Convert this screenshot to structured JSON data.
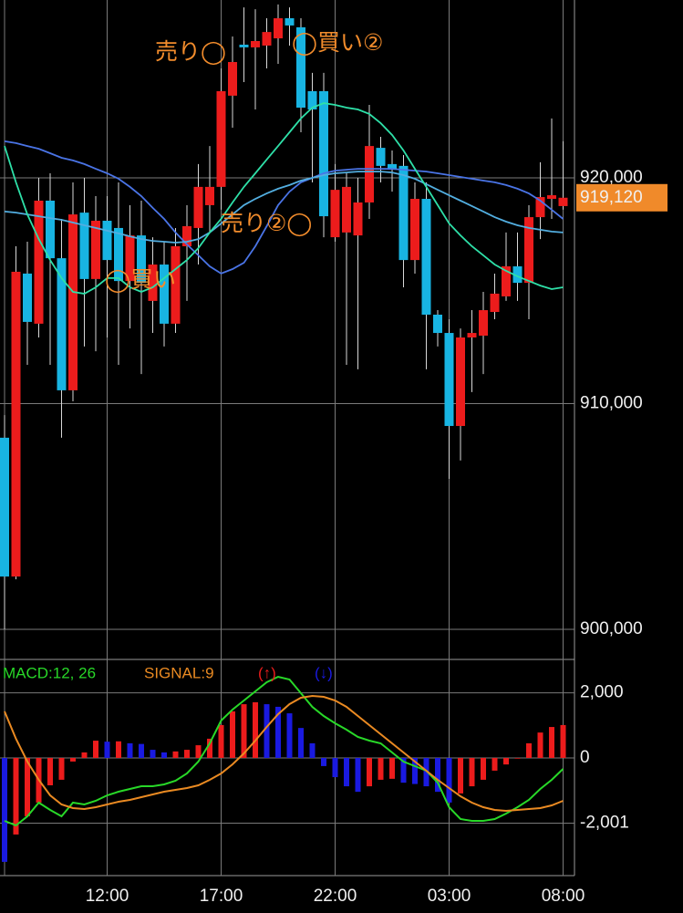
{
  "chart_data": [
    {
      "type": "candlestick",
      "categories": [
        null,
        null,
        null,
        null,
        null,
        null,
        null,
        null,
        null,
        "12:00",
        null,
        null,
        null,
        null,
        null,
        null,
        null,
        null,
        null,
        "17:00",
        null,
        null,
        null,
        null,
        null,
        null,
        null,
        null,
        null,
        "22:00",
        null,
        null,
        null,
        null,
        null,
        null,
        null,
        null,
        null,
        "03:00",
        null,
        null,
        null,
        null,
        null,
        null,
        null,
        null,
        null,
        "08:00"
      ],
      "open": [
        908490,
        902340,
        915760,
        913540,
        918990,
        916440,
        910590,
        918460,
        915520,
        918100,
        917780,
        915430,
        917450,
        914550,
        916160,
        913540,
        916970,
        917780,
        918790,
        919600,
        923640,
        925900,
        925780,
        925860,
        926180,
        927070,
        926670,
        923840,
        923840,
        917370,
        917580,
        917450,
        918910,
        921330,
        920610,
        920530,
        916360,
        919070,
        913940,
        913130,
        909010,
        912930,
        913010,
        914060,
        914750,
        916080,
        915350,
        918260,
        919070,
        918750
      ],
      "high": [
        909490,
        916970,
        917170,
        920000,
        920200,
        918180,
        919800,
        920000,
        919190,
        919190,
        919800,
        918790,
        918990,
        917370,
        917170,
        917780,
        918790,
        920610,
        921410,
        924850,
        926260,
        927550,
        927470,
        927070,
        927680,
        927550,
        927070,
        924650,
        924650,
        920610,
        920200,
        920000,
        923230,
        921820,
        921210,
        921010,
        919800,
        919800,
        914140,
        913740,
        913330,
        914140,
        914950,
        915760,
        917580,
        917580,
        918790,
        920690,
        922630,
        921620
      ],
      "low": [
        900000,
        902220,
        911720,
        912930,
        911720,
        908490,
        910100,
        912530,
        912320,
        912930,
        911720,
        913330,
        911310,
        913130,
        912530,
        913130,
        914550,
        916160,
        917580,
        918590,
        922220,
        924240,
        923030,
        924850,
        925050,
        925860,
        922020,
        919800,
        917370,
        917170,
        911720,
        911520,
        918180,
        919800,
        919390,
        915150,
        915760,
        911520,
        912530,
        906670,
        907480,
        910510,
        911310,
        913740,
        914550,
        914550,
        913740,
        917290,
        918180,
        918590
      ],
      "close": [
        902340,
        915840,
        913620,
        918990,
        916440,
        910590,
        918380,
        915520,
        918100,
        916360,
        915430,
        917450,
        915350,
        916160,
        913540,
        916970,
        917860,
        919600,
        919600,
        923840,
        925130,
        925780,
        926060,
        926460,
        927070,
        926750,
        923110,
        923030,
        918300,
        919470,
        919600,
        918910,
        921410,
        920530,
        920360,
        916360,
        919070,
        913940,
        913130,
        909010,
        912930,
        913130,
        914140,
        914870,
        916080,
        915350,
        918260,
        919150,
        919230,
        919120
      ],
      "up_color": "#ec1c1c",
      "down_color": "#18b4e2",
      "series": [
        {
          "color": "#4a74e6",
          "values": [
            921620,
            921540,
            921410,
            921290,
            921090,
            920890,
            920770,
            920610,
            920400,
            920200,
            919960,
            919600,
            919190,
            918670,
            918180,
            917580,
            917050,
            916570,
            916080,
            915760,
            915960,
            916240,
            916970,
            917860,
            918790,
            919390,
            919800,
            920000,
            920200,
            920320,
            920360,
            920400,
            920400,
            920400,
            920400,
            920360,
            920320,
            920280,
            920200,
            920120,
            920040,
            919960,
            919880,
            919800,
            919680,
            919520,
            919310,
            918990,
            918590,
            918180
          ]
        },
        {
          "color": "#52aee0",
          "values": [
            918510,
            918460,
            918380,
            918300,
            918220,
            918140,
            918020,
            917900,
            917780,
            917660,
            917540,
            917410,
            917290,
            917210,
            917170,
            917130,
            917170,
            917290,
            917580,
            917980,
            918380,
            918790,
            919070,
            919310,
            919520,
            919680,
            919880,
            920000,
            920120,
            920200,
            920240,
            920280,
            920280,
            920280,
            920240,
            920120,
            919960,
            919720,
            919470,
            919230,
            918990,
            918750,
            918510,
            918260,
            918060,
            917900,
            917780,
            917700,
            917620,
            917580
          ]
        },
        {
          "color": "#2ee0a8",
          "values": [
            921410,
            919800,
            918380,
            917290,
            916360,
            915560,
            914950,
            914870,
            915150,
            915560,
            915560,
            915150,
            914950,
            915150,
            915560,
            915960,
            916360,
            916890,
            917580,
            918180,
            918910,
            919600,
            920200,
            920810,
            921410,
            922020,
            922630,
            923110,
            923310,
            923230,
            923110,
            923030,
            922830,
            922420,
            921900,
            921210,
            920400,
            919600,
            918790,
            917980,
            917450,
            916970,
            916570,
            916160,
            915880,
            915640,
            915430,
            915230,
            915070,
            915150
          ]
        }
      ],
      "ylim": [
        898709,
        927878
      ],
      "yticks": [
        {
          "value": 900000,
          "label": "900,000"
        },
        {
          "value": 910000,
          "label": "910,000"
        },
        {
          "value": 920000,
          "label": "920,000"
        }
      ],
      "last_price": {
        "value": 919120,
        "label": "919,120"
      },
      "annotations": [
        "売り◯",
        "◯買い②",
        "売り②◯",
        "◯買い"
      ],
      "grid": true
    },
    {
      "type": "macd",
      "histogram": [
        -3190,
        -2350,
        -1790,
        -1370,
        -840,
        -670,
        -110,
        170,
        530,
        500,
        510,
        450,
        430,
        250,
        170,
        200,
        250,
        390,
        590,
        1010,
        1430,
        1650,
        1710,
        1650,
        1570,
        1370,
        920,
        450,
        -250,
        -590,
        -870,
        -1040,
        -870,
        -670,
        -640,
        -760,
        -800,
        -870,
        -1040,
        -1370,
        -1090,
        -870,
        -670,
        -390,
        -200,
        -20,
        450,
        780,
        950,
        1010
      ],
      "up_color": "#ec1c1c",
      "down_color": "#1a1ae0",
      "rise_label": "(↑)",
      "fall_label": "(↓)",
      "series": [
        {
          "name": "MACD:12, 26",
          "color": "#28d828",
          "values": [
            -1932,
            -2072,
            -1792,
            -1372,
            -1596,
            -1792,
            -1372,
            -1428,
            -1316,
            -1148,
            -1036,
            -952,
            -868,
            -868,
            -812,
            -700,
            -476,
            -112,
            448,
            1148,
            1484,
            1764,
            2044,
            2324,
            2492,
            2408,
            1988,
            1568,
            1288,
            1064,
            868,
            644,
            532,
            448,
            168,
            -112,
            -252,
            -392,
            -756,
            -1512,
            -1876,
            -1932,
            -1932,
            -1876,
            -1708,
            -1512,
            -1288,
            -952,
            -672,
            -336
          ]
        },
        {
          "name": "SIGNAL:9",
          "color": "#ea8a22",
          "values": [
            1428,
            588,
            -112,
            -672,
            -1148,
            -1428,
            -1540,
            -1568,
            -1512,
            -1428,
            -1344,
            -1288,
            -1204,
            -1120,
            -1036,
            -980,
            -924,
            -840,
            -672,
            -476,
            -196,
            140,
            532,
            952,
            1344,
            1652,
            1848,
            1904,
            1876,
            1764,
            1568,
            1288,
            1008,
            728,
            448,
            168,
            -112,
            -392,
            -672,
            -924,
            -1176,
            -1372,
            -1512,
            -1596,
            -1624,
            -1596,
            -1568,
            -1540,
            -1456,
            -1316
          ]
        }
      ],
      "ylim": [
        -3612,
        2996
      ],
      "yticks": [
        {
          "value": 2000,
          "label": "2,000"
        },
        0,
        {
          "value": -2001,
          "label": "-2,001"
        }
      ],
      "grid": true
    }
  ]
}
